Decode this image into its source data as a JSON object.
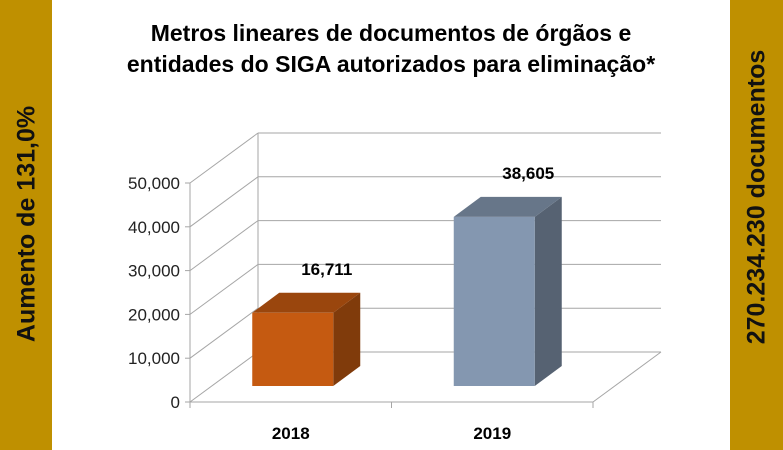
{
  "side_left": {
    "text": "Aumento de 131,0%"
  },
  "side_right": {
    "text": "270.234.230 documentos"
  },
  "colors": {
    "side_panel": "#BF9000",
    "grid": "#A6A6A6"
  },
  "chart_data": {
    "type": "bar",
    "style": "3d-column",
    "title": "Metros lineares de documentos de órgãos e entidades do SIGA autorizados para eliminação*",
    "title_lines": [
      "Metros lineares de documentos de órgãos e",
      "entidades do SIGA autorizados para eliminação*"
    ],
    "categories": [
      "2018",
      "2019"
    ],
    "values": [
      16711,
      38605
    ],
    "data_labels": [
      "16,711",
      "38,605"
    ],
    "bar_colors": [
      "#C55A11",
      "#8497B0"
    ],
    "ylim": [
      0,
      50000
    ],
    "yticks": [
      "0",
      "10,000",
      "20,000",
      "30,000",
      "40,000",
      "50,000"
    ],
    "grid": true,
    "xlabel": "",
    "ylabel": ""
  }
}
